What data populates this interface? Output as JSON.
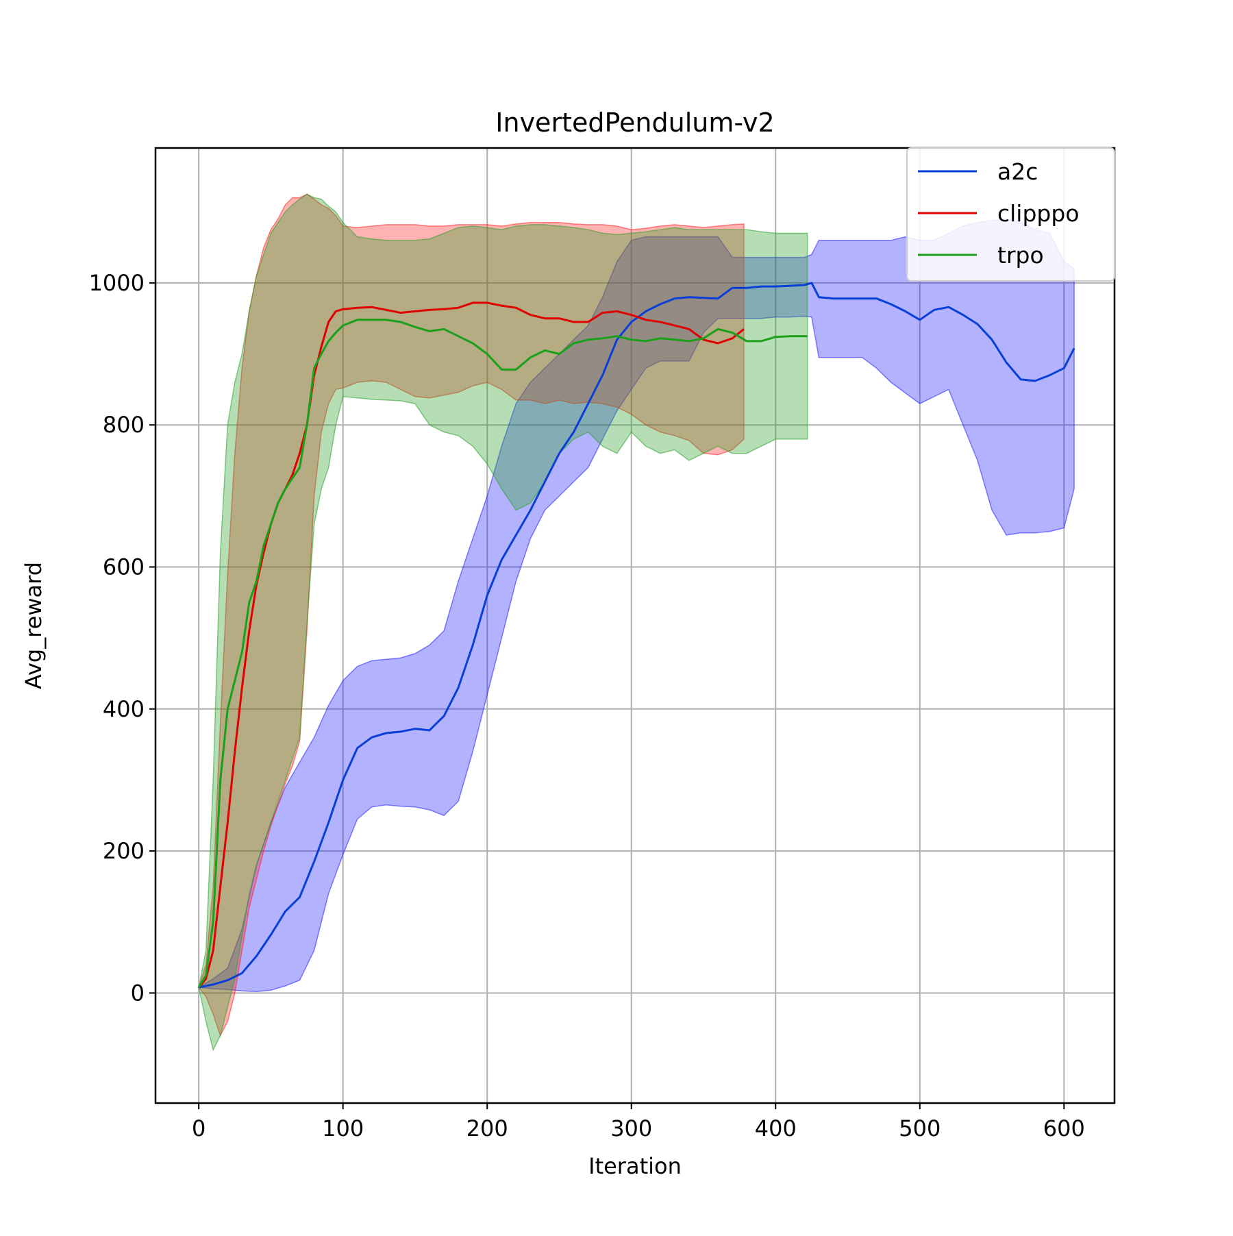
{
  "chart_data": {
    "type": "line",
    "title": "InvertedPendulum-v2",
    "xlabel": "Iteration",
    "ylabel": "Avg_reward",
    "xlim": [
      -30,
      635
    ],
    "ylim": [
      -155,
      1190
    ],
    "xticks": [
      0,
      100,
      200,
      300,
      400,
      500,
      600
    ],
    "yticks": [
      0,
      200,
      400,
      600,
      800,
      1000
    ],
    "grid": true,
    "legend_position": "top-right",
    "series": [
      {
        "name": "a2c",
        "color": "#0a3fd6",
        "band_color": "#2222ff",
        "band_opacity": 0.35,
        "x": [
          0,
          10,
          20,
          30,
          40,
          50,
          60,
          70,
          80,
          90,
          100,
          110,
          120,
          130,
          140,
          150,
          160,
          170,
          180,
          190,
          200,
          210,
          220,
          230,
          240,
          250,
          260,
          270,
          280,
          290,
          300,
          310,
          320,
          330,
          340,
          350,
          360,
          370,
          380,
          390,
          400,
          410,
          420,
          425,
          430,
          440,
          450,
          460,
          470,
          480,
          490,
          500,
          510,
          520,
          530,
          540,
          550,
          560,
          570,
          580,
          590,
          600,
          607
        ],
        "y": [
          8,
          12,
          18,
          28,
          52,
          82,
          115,
          135,
          185,
          240,
          300,
          345,
          360,
          366,
          368,
          372,
          370,
          390,
          430,
          490,
          560,
          610,
          645,
          680,
          720,
          760,
          790,
          830,
          870,
          920,
          945,
          960,
          970,
          978,
          980,
          979,
          978,
          993,
          993,
          995,
          995,
          996,
          997,
          1000,
          980,
          978,
          978,
          978,
          978,
          970,
          960,
          948,
          962,
          966,
          955,
          942,
          920,
          888,
          864,
          862,
          870,
          880,
          908
        ],
        "lower": [
          8,
          6,
          5,
          3,
          2,
          4,
          10,
          18,
          60,
          140,
          195,
          245,
          262,
          265,
          263,
          262,
          258,
          250,
          270,
          340,
          420,
          500,
          580,
          640,
          680,
          700,
          720,
          740,
          780,
          820,
          850,
          880,
          890,
          890,
          890,
          930,
          950,
          950,
          950,
          950,
          952,
          952,
          953,
          952,
          895,
          895,
          895,
          895,
          880,
          860,
          845,
          830,
          840,
          850,
          800,
          750,
          680,
          645,
          648,
          648,
          650,
          655,
          710
        ],
        "upper": [
          8,
          20,
          35,
          90,
          180,
          240,
          290,
          325,
          360,
          405,
          440,
          460,
          468,
          470,
          472,
          478,
          490,
          510,
          580,
          640,
          700,
          770,
          830,
          860,
          880,
          900,
          920,
          940,
          980,
          1030,
          1060,
          1065,
          1065,
          1065,
          1065,
          1065,
          1065,
          1036,
          1036,
          1036,
          1036,
          1036,
          1036,
          1040,
          1060,
          1060,
          1060,
          1060,
          1060,
          1060,
          1065,
          1060,
          1060,
          1070,
          1080,
          1085,
          1088,
          1090,
          1085,
          1075,
          1070,
          1030,
          1020
        ]
      },
      {
        "name": "clipppo",
        "color": "#e00000",
        "band_color": "#ff2222",
        "band_opacity": 0.35,
        "x": [
          0,
          5,
          10,
          15,
          20,
          25,
          30,
          35,
          40,
          45,
          50,
          55,
          60,
          65,
          70,
          75,
          80,
          85,
          90,
          95,
          100,
          110,
          120,
          130,
          140,
          150,
          160,
          170,
          180,
          190,
          200,
          210,
          220,
          230,
          240,
          250,
          260,
          270,
          280,
          290,
          300,
          310,
          320,
          330,
          340,
          350,
          360,
          370,
          378
        ],
        "y": [
          8,
          20,
          60,
          150,
          240,
          340,
          430,
          510,
          575,
          620,
          660,
          690,
          710,
          730,
          760,
          800,
          870,
          910,
          945,
          960,
          963,
          965,
          966,
          962,
          958,
          960,
          962,
          963,
          965,
          972,
          972,
          968,
          965,
          955,
          950,
          950,
          945,
          945,
          958,
          960,
          955,
          948,
          945,
          940,
          935,
          920,
          915,
          922,
          935
        ],
        "lower": [
          8,
          -5,
          -30,
          -60,
          -40,
          0,
          60,
          120,
          160,
          200,
          235,
          265,
          295,
          320,
          355,
          510,
          700,
          790,
          830,
          850,
          852,
          860,
          862,
          860,
          850,
          840,
          838,
          842,
          846,
          855,
          860,
          850,
          835,
          835,
          830,
          835,
          830,
          832,
          830,
          825,
          815,
          800,
          790,
          785,
          778,
          760,
          758,
          765,
          780
        ],
        "upper": [
          8,
          40,
          150,
          380,
          590,
          760,
          880,
          960,
          1010,
          1050,
          1075,
          1090,
          1110,
          1120,
          1120,
          1125,
          1118,
          1110,
          1105,
          1095,
          1080,
          1078,
          1080,
          1082,
          1082,
          1082,
          1080,
          1080,
          1082,
          1082,
          1082,
          1080,
          1083,
          1085,
          1085,
          1085,
          1083,
          1082,
          1082,
          1080,
          1075,
          1077,
          1080,
          1082,
          1080,
          1078,
          1080,
          1082,
          1083
        ]
      },
      {
        "name": "trpo",
        "color": "#1aa01a",
        "band_color": "#2ca02c",
        "band_opacity": 0.35,
        "x": [
          0,
          5,
          10,
          15,
          20,
          25,
          30,
          35,
          40,
          45,
          50,
          55,
          60,
          65,
          70,
          75,
          80,
          85,
          90,
          95,
          100,
          110,
          120,
          130,
          140,
          150,
          160,
          170,
          180,
          190,
          200,
          210,
          220,
          230,
          240,
          250,
          260,
          270,
          280,
          290,
          300,
          310,
          320,
          330,
          340,
          350,
          360,
          370,
          380,
          390,
          400,
          410,
          422
        ],
        "y": [
          8,
          25,
          100,
          300,
          400,
          440,
          480,
          550,
          580,
          630,
          660,
          690,
          710,
          725,
          740,
          800,
          880,
          900,
          918,
          930,
          940,
          948,
          948,
          948,
          945,
          938,
          932,
          935,
          925,
          915,
          900,
          878,
          878,
          895,
          905,
          900,
          915,
          920,
          922,
          925,
          920,
          918,
          922,
          920,
          918,
          922,
          935,
          930,
          918,
          918,
          924,
          925,
          925
        ],
        "lower": [
          8,
          -40,
          -80,
          -60,
          -20,
          20,
          80,
          140,
          180,
          210,
          240,
          270,
          300,
          330,
          360,
          520,
          660,
          710,
          740,
          800,
          840,
          838,
          836,
          835,
          834,
          830,
          800,
          790,
          785,
          770,
          745,
          710,
          680,
          690,
          720,
          760,
          780,
          790,
          770,
          760,
          790,
          770,
          760,
          765,
          750,
          760,
          770,
          760,
          760,
          770,
          780,
          780,
          780
        ],
        "upper": [
          8,
          60,
          300,
          620,
          800,
          860,
          900,
          960,
          1010,
          1040,
          1070,
          1085,
          1100,
          1110,
          1118,
          1125,
          1120,
          1118,
          1108,
          1100,
          1085,
          1065,
          1062,
          1060,
          1060,
          1060,
          1062,
          1070,
          1078,
          1080,
          1078,
          1075,
          1080,
          1082,
          1082,
          1080,
          1078,
          1075,
          1070,
          1068,
          1070,
          1072,
          1075,
          1078,
          1075,
          1075,
          1075,
          1075,
          1075,
          1072,
          1070,
          1070,
          1070
        ]
      }
    ]
  }
}
